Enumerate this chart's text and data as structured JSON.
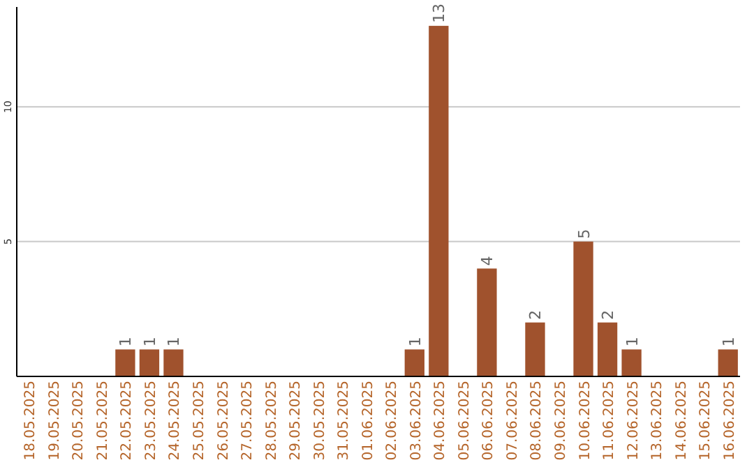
{
  "chart_data": {
    "type": "bar",
    "categories": [
      "18.05.2025",
      "19.05.2025",
      "20.05.2025",
      "21.05.2025",
      "22.05.2025",
      "23.05.2025",
      "24.05.2025",
      "25.05.2025",
      "26.05.2025",
      "27.05.2025",
      "28.05.2025",
      "29.05.2025",
      "30.05.2025",
      "31.05.2025",
      "01.06.2025",
      "02.06.2025",
      "03.06.2025",
      "04.06.2025",
      "05.06.2025",
      "06.06.2025",
      "07.06.2025",
      "08.06.2025",
      "09.06.2025",
      "10.06.2025",
      "11.06.2025",
      "12.06.2025",
      "13.06.2025",
      "14.06.2025",
      "15.06.2025",
      "16.06.2025"
    ],
    "values": [
      0,
      0,
      0,
      0,
      1,
      1,
      1,
      0,
      0,
      0,
      0,
      0,
      0,
      0,
      0,
      0,
      1,
      13,
      0,
      4,
      0,
      2,
      0,
      5,
      2,
      1,
      0,
      0,
      0,
      1
    ],
    "value_labels": [
      null,
      null,
      null,
      null,
      "1",
      "1",
      "1",
      null,
      null,
      null,
      null,
      null,
      null,
      null,
      null,
      null,
      "1",
      "13",
      null,
      "4",
      null,
      "2",
      null,
      "5",
      "2",
      "1",
      null,
      null,
      null,
      "1"
    ],
    "color": "#a0522d",
    "ylim": [
      0,
      13.7
    ],
    "yticks": [
      5,
      10
    ],
    "grid": "y"
  }
}
